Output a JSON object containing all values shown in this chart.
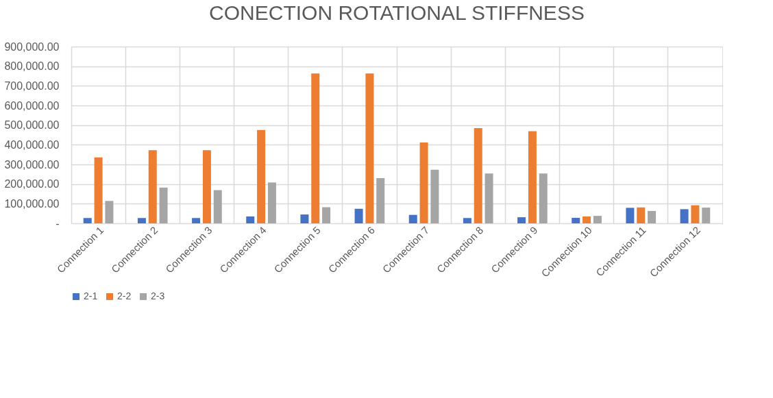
{
  "chart_data": {
    "type": "bar",
    "title": "CONECTION ROTATIONAL STIFFNESS",
    "categories": [
      "Connection 1",
      "Connection 2",
      "Connection 3",
      "Connection 4",
      "Connection 5",
      "Connection 6",
      "Connection 7",
      "Connection 8",
      "Connection 9",
      "Connection 10",
      "Connection 11",
      "Connection 12"
    ],
    "series": [
      {
        "name": "2-1",
        "color": "#4472c4",
        "values": [
          27000,
          27000,
          27000,
          35000,
          45000,
          74000,
          43000,
          27000,
          31000,
          28000,
          79000,
          72000
        ]
      },
      {
        "name": "2-2",
        "color": "#ed7d31",
        "values": [
          336000,
          372000,
          372000,
          475000,
          763000,
          763000,
          412000,
          485000,
          469000,
          35000,
          81000,
          92000
        ]
      },
      {
        "name": "2-3",
        "color": "#a5a5a5",
        "values": [
          114000,
          182000,
          169000,
          208000,
          82000,
          230000,
          273000,
          254000,
          254000,
          38000,
          63000,
          80000
        ]
      }
    ],
    "ylim": [
      0,
      900000
    ],
    "yticks": [
      {
        "value": 0,
        "label": "-"
      },
      {
        "value": 100000,
        "label": "100,000.00"
      },
      {
        "value": 200000,
        "label": "200,000.00"
      },
      {
        "value": 300000,
        "label": "300,000.00"
      },
      {
        "value": 400000,
        "label": "400,000.00"
      },
      {
        "value": 500000,
        "label": "500,000.00"
      },
      {
        "value": 600000,
        "label": "600,000.00"
      },
      {
        "value": 700000,
        "label": "700,000.00"
      },
      {
        "value": 800000,
        "label": "800,000.00"
      },
      {
        "value": 900000,
        "label": "900,000.00"
      }
    ],
    "grid": true,
    "legend": "bottom"
  }
}
